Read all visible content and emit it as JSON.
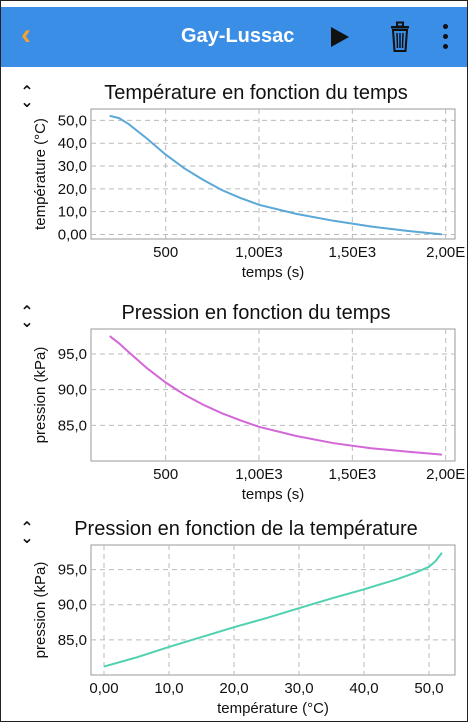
{
  "header": {
    "back_icon": "chevron-left-icon",
    "title": "Gay-Lussac",
    "play_icon": "play-icon",
    "trash_icon": "trash-icon",
    "more_icon": "more-vertical-icon",
    "accent_color": "#3a8ee6",
    "back_color": "#f2a233"
  },
  "chart_data": [
    {
      "type": "line",
      "title": "Température en fonction du temps",
      "xlabel": "temps (s)",
      "ylabel": "température (°C)",
      "x_ticks": [
        "500",
        "1,00E3",
        "1,50E3",
        "2,00E"
      ],
      "x_tick_values": [
        500,
        1000,
        1500,
        2000
      ],
      "y_ticks": [
        "0,00",
        "10,0",
        "20,0",
        "30,0",
        "40,0",
        "50,0"
      ],
      "y_tick_values": [
        0,
        10,
        20,
        30,
        40,
        50
      ],
      "xlim": [
        100,
        2050
      ],
      "ylim": [
        -2,
        55
      ],
      "grid": true,
      "color": "#5aa8d8",
      "series": [
        {
          "x": [
            200,
            250,
            300,
            400,
            500,
            600,
            700,
            800,
            900,
            1000,
            1200,
            1400,
            1600,
            1800,
            1980
          ],
          "y": [
            52,
            51,
            48.5,
            42,
            35,
            29,
            24,
            19.5,
            16,
            13,
            9,
            6,
            3.5,
            1.5,
            0
          ]
        }
      ]
    },
    {
      "type": "line",
      "title": "Pression en fonction du temps",
      "xlabel": "temps (s)",
      "ylabel": "pression (kPa)",
      "x_ticks": [
        "500",
        "1,00E3",
        "1,50E3",
        "2,00E"
      ],
      "x_tick_values": [
        500,
        1000,
        1500,
        2000
      ],
      "y_ticks": [
        "85,0",
        "90,0",
        "95,0"
      ],
      "y_tick_values": [
        85,
        90,
        95
      ],
      "xlim": [
        100,
        2050
      ],
      "ylim": [
        80,
        98.5
      ],
      "grid": true,
      "color": "#d467d8",
      "series": [
        {
          "x": [
            200,
            250,
            300,
            400,
            500,
            600,
            700,
            800,
            900,
            1000,
            1200,
            1400,
            1600,
            1800,
            1980
          ],
          "y": [
            97.5,
            96.5,
            95.3,
            93,
            91,
            89.3,
            87.9,
            86.7,
            85.7,
            84.8,
            83.5,
            82.5,
            81.8,
            81.3,
            80.9
          ]
        }
      ]
    },
    {
      "type": "line",
      "title": "Pression en fonction de la température",
      "xlabel": "température (°C)",
      "ylabel": "pression (kPa)",
      "x_ticks": [
        "0,00",
        "10,0",
        "20,0",
        "30,0",
        "40,0",
        "50,0"
      ],
      "x_tick_values": [
        0,
        10,
        20,
        30,
        40,
        50
      ],
      "y_ticks": [
        "85,0",
        "90,0",
        "95,0"
      ],
      "y_tick_values": [
        85,
        90,
        95
      ],
      "xlim": [
        -2,
        54
      ],
      "ylim": [
        80,
        98.5
      ],
      "grid": true,
      "color": "#4fd1b0",
      "series": [
        {
          "x": [
            0,
            5,
            10,
            15,
            20,
            25,
            30,
            35,
            40,
            45,
            48,
            50,
            51,
            52
          ],
          "y": [
            81.2,
            82.5,
            84,
            85.4,
            86.8,
            88.1,
            89.5,
            90.9,
            92.2,
            93.6,
            94.6,
            95.4,
            96.2,
            97.4
          ]
        }
      ]
    }
  ]
}
